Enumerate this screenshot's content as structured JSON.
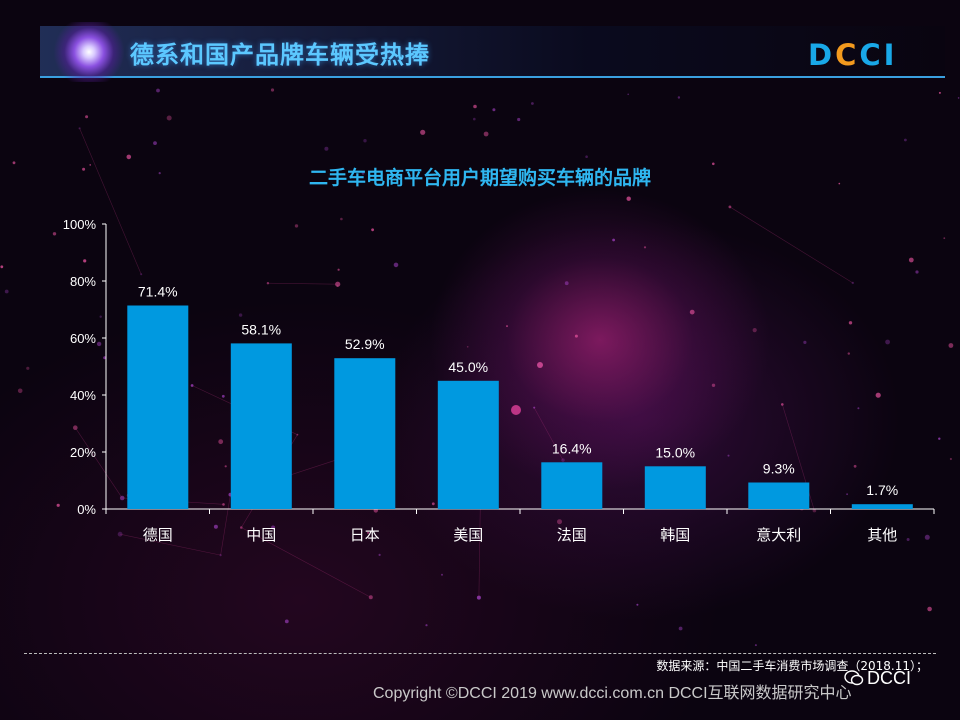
{
  "header": {
    "title": "德系和国产品牌车辆受热捧",
    "logo_d": "D",
    "logo_c": "C",
    "logo_rest": "CI"
  },
  "chart_data": {
    "type": "bar",
    "title": "二手车电商平台用户期望购买车辆的品牌",
    "categories": [
      "德国",
      "中国",
      "日本",
      "美国",
      "法国",
      "韩国",
      "意大利",
      "其他"
    ],
    "values": [
      71.4,
      58.1,
      52.9,
      45.0,
      16.4,
      15.0,
      9.3,
      1.7
    ],
    "value_labels": [
      "71.4%",
      "58.1%",
      "52.9%",
      "45.0%",
      "16.4%",
      "15.0%",
      "9.3%",
      "1.7%"
    ],
    "yticks": [
      "0%",
      "20%",
      "40%",
      "60%",
      "80%",
      "100%"
    ],
    "ylim": [
      0,
      100
    ],
    "bar_color": "#0099e0",
    "grid": false,
    "legend": "none"
  },
  "footer": {
    "source": "数据来源：中国二手车消费市场调查（2018.11）；",
    "copyright": "Copyright ©DCCI 2019  www.dcci.com.cn   DCCI互联网数据研究中心",
    "wechat": "DCCI"
  }
}
